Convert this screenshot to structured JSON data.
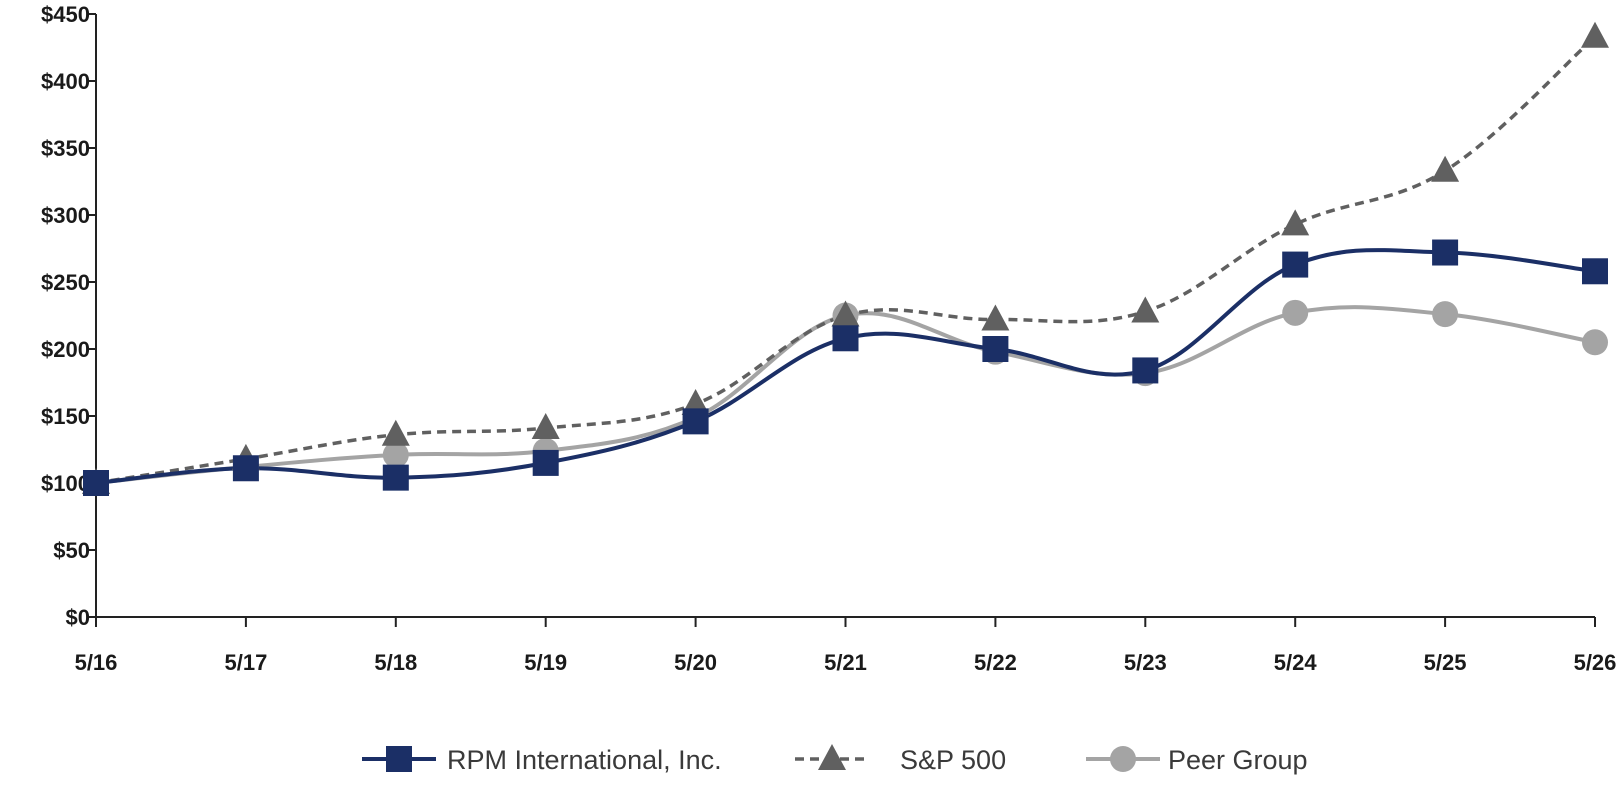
{
  "chart_data": {
    "type": "line",
    "title": "",
    "xlabel": "",
    "ylabel": "",
    "categories": [
      "5/16",
      "5/17",
      "5/18",
      "5/19",
      "5/20",
      "5/21",
      "5/22",
      "5/23",
      "5/24",
      "5/25",
      "5/26"
    ],
    "ylim": [
      0,
      450
    ],
    "yticks": [
      0,
      50,
      100,
      150,
      200,
      250,
      300,
      350,
      400,
      450
    ],
    "ytick_labels": [
      "$0",
      "$50",
      "$100",
      "$150",
      "$200",
      "$250",
      "$300",
      "$350",
      "$400",
      "$450"
    ],
    "grid": false,
    "legend_position": "bottom",
    "series": [
      {
        "name": "RPM International, Inc.",
        "color": "#1b2f66",
        "marker": "square",
        "line_style": "solid",
        "values": [
          100,
          111,
          104,
          115,
          146,
          208,
          200,
          184,
          263,
          272,
          258
        ]
      },
      {
        "name": "S&P 500",
        "color": "#606060",
        "marker": "triangle",
        "line_style": "dashed",
        "values": [
          100,
          118,
          136,
          141,
          159,
          225,
          222,
          228,
          293,
          333,
          433
        ]
      },
      {
        "name": "Peer Group",
        "color": "#a4a4a4",
        "marker": "circle",
        "line_style": "solid",
        "values": [
          100,
          112,
          121,
          124,
          149,
          225,
          198,
          182,
          227,
          226,
          205
        ]
      }
    ]
  }
}
